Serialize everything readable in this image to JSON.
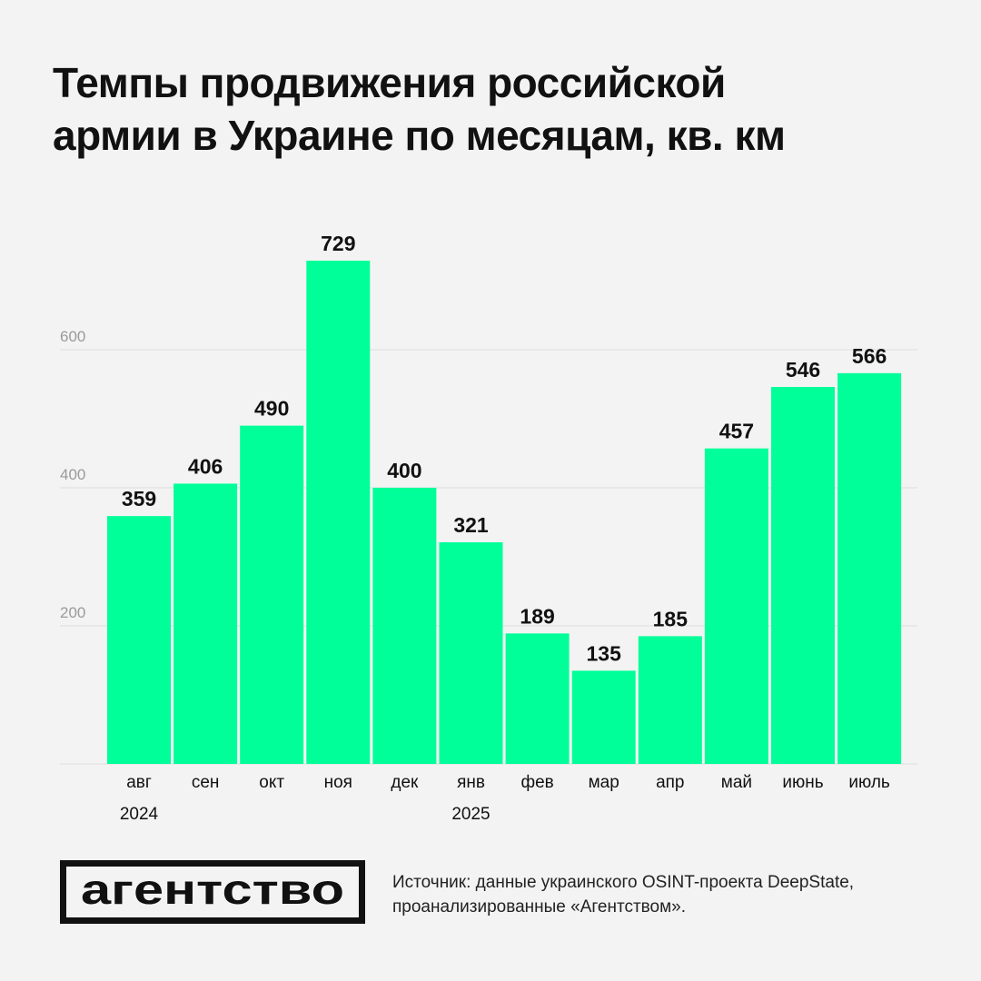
{
  "title": {
    "line1": "Темпы продвижения российской",
    "line2": "армии в Украине по месяцам, кв. км"
  },
  "chart_data": {
    "type": "bar",
    "categories": [
      "авг",
      "сен",
      "окт",
      "ноя",
      "дек",
      "янв",
      "фев",
      "мар",
      "апр",
      "май",
      "июнь",
      "июль"
    ],
    "values": [
      359,
      406,
      490,
      729,
      400,
      321,
      189,
      135,
      185,
      457,
      546,
      566
    ],
    "year_labels": [
      {
        "category_index": 0,
        "label": "2024"
      },
      {
        "category_index": 5,
        "label": "2025"
      }
    ],
    "ylim": [
      0,
      720
    ],
    "yticks": [
      200,
      400,
      600
    ],
    "grid": true,
    "bar_color": "#00ff99",
    "data_labels": true
  },
  "footer": {
    "logo_text": "агентство",
    "source_line1": "Источник: данные украинского OSINT-проекта DeepState,",
    "source_line2": "проанализированные «Агентством»."
  },
  "colors": {
    "background": "#f3f3f3",
    "bar": "#00ff99",
    "grid": "#dddddd",
    "text": "#111111",
    "axis_tick_text": "#9a9a9a"
  }
}
